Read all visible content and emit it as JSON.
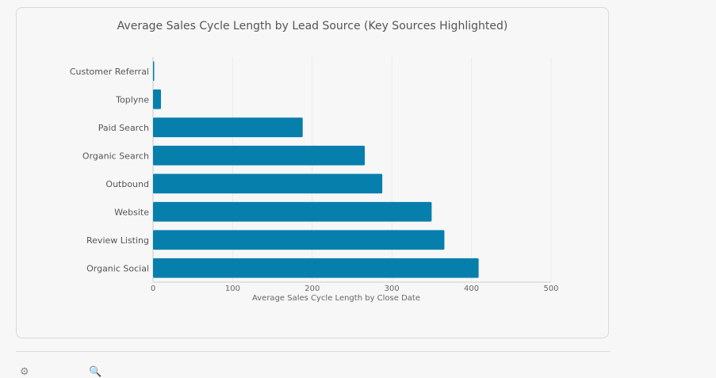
{
  "chart_data": {
    "type": "bar",
    "orientation": "horizontal",
    "title": "Average Sales Cycle Length by Lead Source (Key Sources Highlighted)",
    "xlabel": "Average Sales Cycle Length by Close Date",
    "ylabel": "",
    "categories": [
      "Customer Referral",
      "Toplyne",
      "Paid Search",
      "Organic Search",
      "Outbound",
      "Website",
      "Review Listing",
      "Organic Social"
    ],
    "values": [
      1,
      10,
      188,
      266,
      288,
      350,
      366,
      409
    ],
    "xlim": [
      0,
      500
    ],
    "xticks": [
      0,
      100,
      200,
      300,
      400,
      500
    ],
    "grid": true,
    "bar_color": "#077fac"
  },
  "toolbar": {
    "icons": [
      "gear-icon",
      "magnifier-icon"
    ]
  }
}
